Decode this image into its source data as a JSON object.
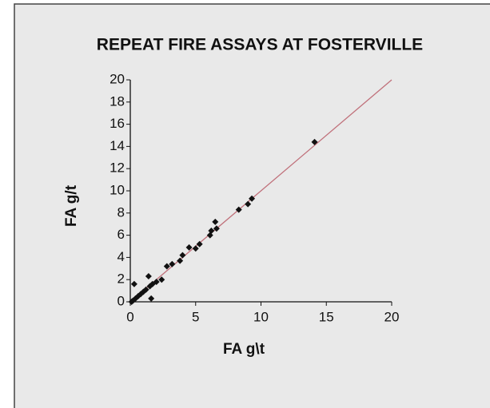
{
  "chart_data": {
    "type": "scatter",
    "title": "REPEAT FIRE ASSAYS AT FOSTERVILLE",
    "x_label": "FA g\\t",
    "y_label": "FA g/t",
    "x": [
      0.1,
      0.2,
      0.4,
      0.6,
      0.8,
      1.0,
      1.2,
      1.5,
      1.7,
      0.3,
      1.4,
      1.6,
      2.0,
      2.4,
      2.8,
      3.2,
      3.8,
      4.0,
      4.5,
      5.0,
      5.3,
      6.1,
      6.2,
      6.5,
      6.6,
      8.3,
      9.0,
      9.3,
      14.1
    ],
    "series": [
      {
        "color": "#111111",
        "values": [
          0.0,
          0.1,
          0.3,
          0.5,
          0.7,
          0.9,
          1.1,
          1.4,
          1.6,
          1.6,
          2.3,
          0.3,
          1.8,
          2.0,
          3.2,
          3.4,
          3.7,
          4.2,
          4.9,
          4.8,
          5.2,
          6.0,
          6.4,
          7.2,
          6.6,
          8.3,
          8.8,
          9.3,
          14.4
        ]
      }
    ],
    "xlim": [
      0,
      20
    ],
    "ylim": [
      0,
      20
    ],
    "xticks": [
      0,
      5,
      10,
      15,
      20
    ],
    "yticks": [
      0,
      2,
      4,
      6,
      8,
      10,
      12,
      14,
      16,
      18,
      20
    ],
    "line_color": "#c0707a"
  }
}
